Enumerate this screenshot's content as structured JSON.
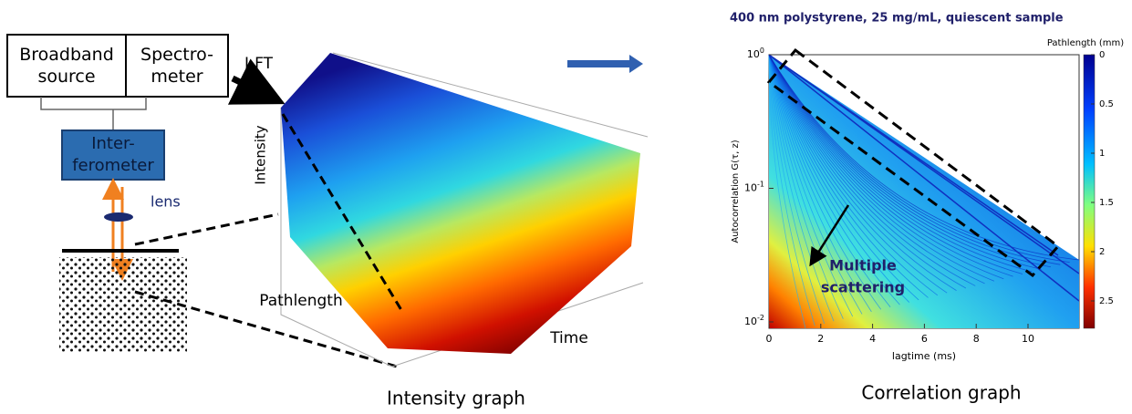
{
  "setup": {
    "source": "Broadband source",
    "spectrometer": "Spectro-meter",
    "interferometer": "Inter-ferometer",
    "lens": "lens",
    "transform": "I-FT"
  },
  "intensity_graph": {
    "y_label": "Intensity",
    "depth_label": "Pathlength",
    "x_label": "Time",
    "caption": "Intensity graph"
  },
  "correlation_graph": {
    "title": "400 nm polystyrene, 25 mg/mL, quiescent sample",
    "colorbar_title": "Pathlength (mm)",
    "colorbar_ticks": [
      "0",
      "0.5",
      "1",
      "1.5",
      "2",
      "2.5"
    ],
    "y_label": "Autocorrelation G(τ, z)",
    "y_ticks": [
      {
        "base": "10",
        "exp": "0"
      },
      {
        "base": "10",
        "exp": "-1"
      },
      {
        "base": "10",
        "exp": "-2"
      }
    ],
    "x_label": "lagtime (ms)",
    "x_ticks": [
      "0",
      "2",
      "4",
      "6",
      "8",
      "10"
    ],
    "annotation": [
      "Multiple",
      "scattering"
    ],
    "caption": "Correlation graph"
  }
}
